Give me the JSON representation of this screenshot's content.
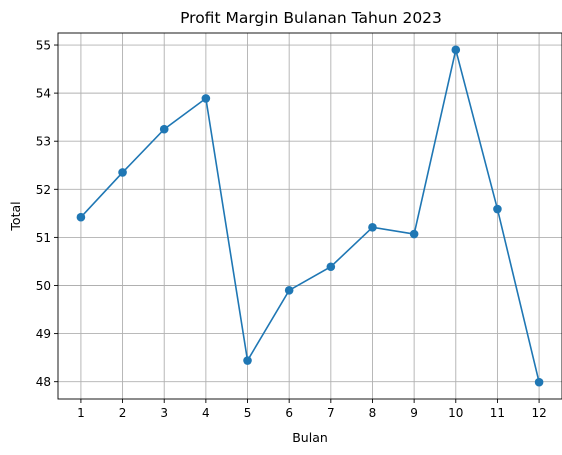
{
  "chart_data": {
    "type": "line",
    "title": "Profit Margin Bulanan Tahun 2023",
    "xlabel": "Bulan",
    "ylabel": "Total",
    "x": [
      1,
      2,
      3,
      4,
      5,
      6,
      7,
      8,
      9,
      10,
      11,
      12
    ],
    "y": [
      51.42,
      52.35,
      53.25,
      53.89,
      48.44,
      49.9,
      50.39,
      51.21,
      51.07,
      54.9,
      51.59,
      47.99
    ],
    "xticks": [
      "1",
      "2",
      "3",
      "4",
      "5",
      "6",
      "7",
      "8",
      "9",
      "10",
      "11",
      "12"
    ],
    "yticks": [
      "48",
      "49",
      "50",
      "51",
      "52",
      "53",
      "54",
      "55"
    ],
    "xlim": [
      0.45,
      12.55
    ],
    "ylim": [
      47.64,
      55.25
    ],
    "grid": true,
    "marker": "circle",
    "color": "#1f77b4"
  }
}
